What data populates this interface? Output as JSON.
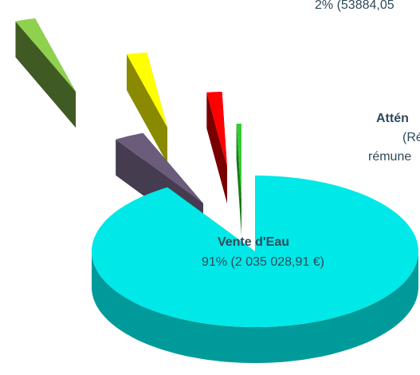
{
  "chart_data": {
    "type": "pie3d",
    "labels": [
      "Vente d'Eau",
      null,
      null,
      null,
      null,
      null
    ],
    "values": [
      91,
      3,
      2,
      2,
      1.5,
      0.5
    ],
    "value_labels": [
      "91% (2 035 028,91 €)",
      null,
      null,
      "2% (53884,05",
      null,
      null
    ],
    "colors": [
      "#00e8e8",
      "#6a5c7a",
      "#8fd14f",
      "#ffff00",
      "#ff0000",
      "#33cc33"
    ],
    "side_colors": [
      "#009a9a",
      "#463c50",
      "#3f5a22",
      "#8a8a00",
      "#7a0000",
      "#1a7a1a"
    ],
    "annotations": [
      "Attén",
      "(Ré",
      "rémune"
    ]
  }
}
